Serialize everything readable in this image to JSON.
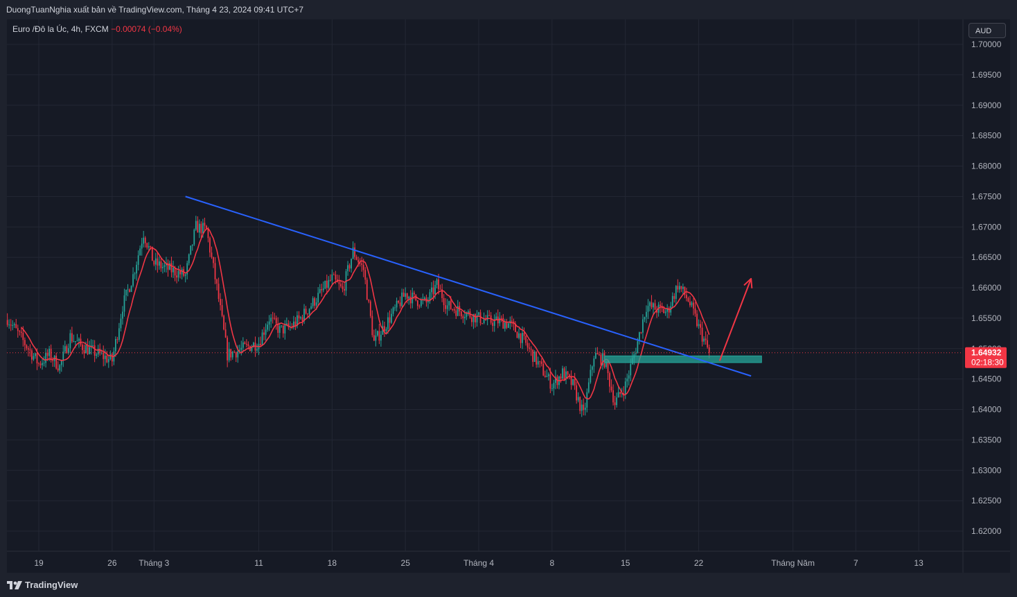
{
  "header": {
    "publisher_line": "DuongTuanNghia xuất bản về TradingView.com, Tháng 4 23, 2024 09:41 UTC+7"
  },
  "legend": {
    "symbol": "Euro /Đô la Úc, 4h, FXCM",
    "change": "−0.00074 (−0.04%)"
  },
  "currency_button": "AUD",
  "brand": "TradingView",
  "colors": {
    "up": "#26a69a",
    "down": "#f23645",
    "ma": "#f23645",
    "trendline": "#2962ff",
    "zone": "#26a69a",
    "arrow": "#f23645",
    "price_tag": "#f23645"
  },
  "chart_data": {
    "type": "candlestick",
    "symbol": "EUR/AUD",
    "timeframe": "4h",
    "ylim": [
      1.615,
      1.7045
    ],
    "y_ticks": [
      "1.70000",
      "1.69500",
      "1.69000",
      "1.68500",
      "1.68000",
      "1.67500",
      "1.67000",
      "1.66500",
      "1.66000",
      "1.65500",
      "1.65000",
      "1.64500",
      "1.64000",
      "1.63500",
      "1.63000",
      "1.62500",
      "1.62000"
    ],
    "x_ticks": [
      {
        "label": "19",
        "date": "2024-02-19"
      },
      {
        "label": "26",
        "date": "2024-02-26"
      },
      {
        "label": "Tháng 3",
        "date": "2024-03-01"
      },
      {
        "label": "11",
        "date": "2024-03-11"
      },
      {
        "label": "18",
        "date": "2024-03-18"
      },
      {
        "label": "25",
        "date": "2024-03-25"
      },
      {
        "label": "Tháng 4",
        "date": "2024-04-01"
      },
      {
        "label": "8",
        "date": "2024-04-08"
      },
      {
        "label": "15",
        "date": "2024-04-15"
      },
      {
        "label": "22",
        "date": "2024-04-22"
      },
      {
        "label": "Tháng Năm",
        "date": "2024-05-01"
      },
      {
        "label": "7",
        "date": "2024-05-07"
      },
      {
        "label": "13",
        "date": "2024-05-13"
      }
    ],
    "last_price": "1.64932",
    "countdown": "02:18:30",
    "price_path": [
      [
        "2024-02-16",
        1.655
      ],
      [
        "2024-02-19",
        1.6475
      ],
      [
        "2024-02-20",
        1.649
      ],
      [
        "2024-02-21",
        1.647
      ],
      [
        "2024-02-22",
        1.652
      ],
      [
        "2024-02-23",
        1.6505
      ],
      [
        "2024-02-26",
        1.648
      ],
      [
        "2024-02-27",
        1.657
      ],
      [
        "2024-02-28",
        1.662
      ],
      [
        "2024-02-29",
        1.669
      ],
      [
        "2024-03-01",
        1.664
      ],
      [
        "2024-03-04",
        1.662
      ],
      [
        "2024-03-05",
        1.67
      ],
      [
        "2024-03-06",
        1.6695
      ],
      [
        "2024-03-07",
        1.66
      ],
      [
        "2024-03-08",
        1.649
      ],
      [
        "2024-03-11",
        1.651
      ],
      [
        "2024-03-12",
        1.655
      ],
      [
        "2024-03-13",
        1.653
      ],
      [
        "2024-03-14",
        1.6535
      ],
      [
        "2024-03-15",
        1.655
      ],
      [
        "2024-03-18",
        1.6615
      ],
      [
        "2024-03-19",
        1.6595
      ],
      [
        "2024-03-20",
        1.666
      ],
      [
        "2024-03-21",
        1.663
      ],
      [
        "2024-03-22",
        1.651
      ],
      [
        "2024-03-25",
        1.659
      ],
      [
        "2024-03-26",
        1.658
      ],
      [
        "2024-03-27",
        1.6575
      ],
      [
        "2024-03-28",
        1.6605
      ],
      [
        "2024-03-29",
        1.657
      ],
      [
        "2024-04-01",
        1.655
      ],
      [
        "2024-04-02",
        1.6545
      ],
      [
        "2024-04-03",
        1.6545
      ],
      [
        "2024-04-04",
        1.654
      ],
      [
        "2024-04-05",
        1.652
      ],
      [
        "2024-04-08",
        1.644
      ],
      [
        "2024-04-09",
        1.646
      ],
      [
        "2024-04-10",
        1.644
      ],
      [
        "2024-04-11",
        1.639
      ],
      [
        "2024-04-12",
        1.649
      ],
      [
        "2024-04-13",
        1.648
      ],
      [
        "2024-04-14",
        1.641
      ],
      [
        "2024-04-15",
        1.644
      ],
      [
        "2024-04-16",
        1.65
      ],
      [
        "2024-04-17",
        1.657
      ],
      [
        "2024-04-18",
        1.6565
      ],
      [
        "2024-04-19",
        1.656
      ],
      [
        "2024-04-20",
        1.6605
      ],
      [
        "2024-04-21",
        1.658
      ],
      [
        "2024-04-22",
        1.6535
      ],
      [
        "2024-04-23",
        1.6493
      ]
    ],
    "trendline": [
      [
        "2024-03-04",
        1.675
      ],
      [
        "2024-04-27",
        1.6455
      ]
    ],
    "support_zone": {
      "from": "2024-04-13",
      "to": "2024-04-28",
      "top": 1.6488,
      "bottom": 1.6477
    },
    "projection_arrow": [
      [
        "2024-04-24",
        1.648
      ],
      [
        "2024-04-27",
        1.6615
      ]
    ]
  }
}
